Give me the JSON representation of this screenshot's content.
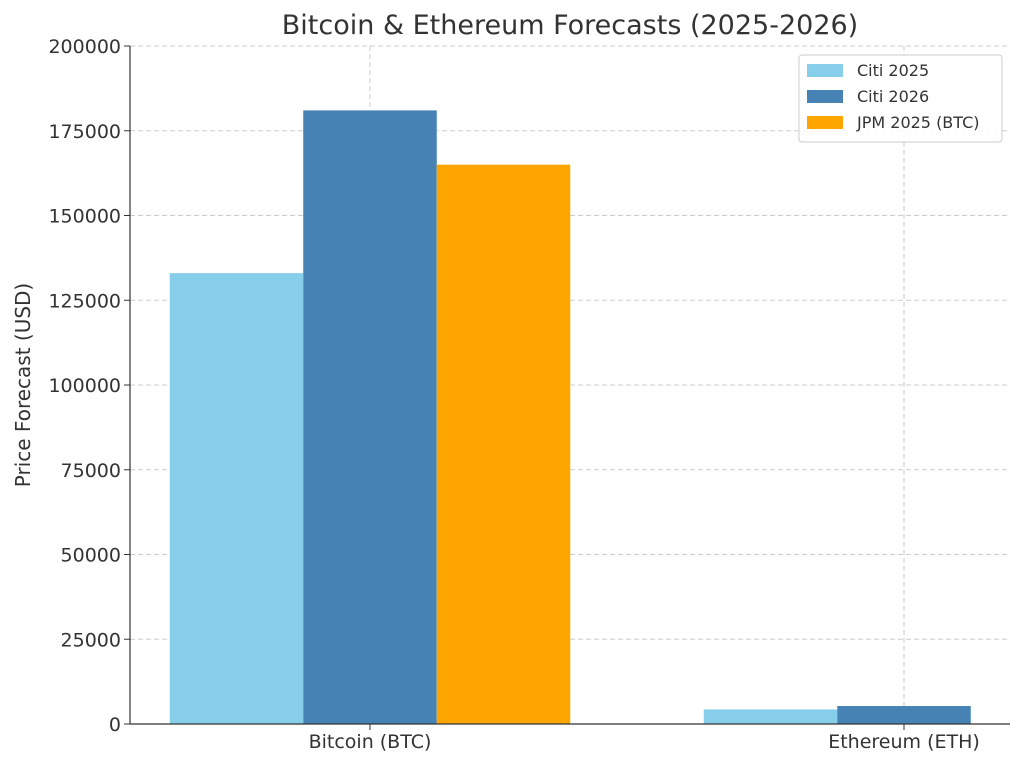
{
  "chart_data": {
    "type": "bar",
    "title": "Bitcoin & Ethereum Forecasts (2025-2026)",
    "xlabel": "",
    "ylabel": "Price Forecast (USD)",
    "ylim": [
      0,
      200000
    ],
    "yticks": [
      "0",
      "25000",
      "50000",
      "75000",
      "100000",
      "125000",
      "150000",
      "175000",
      "200000"
    ],
    "categories": [
      "Bitcoin (BTC)",
      "Ethereum (ETH)"
    ],
    "series": [
      {
        "name": "Citi 2025",
        "color": "#87CEEB",
        "values": [
          133000,
          4300
        ]
      },
      {
        "name": "Citi 2026",
        "color": "#4682B4",
        "values": [
          181000,
          5300
        ]
      },
      {
        "name": "JPM 2025 (BTC)",
        "color": "#FFA500",
        "values": [
          165000,
          null
        ]
      }
    ],
    "grid": true,
    "legend_position": "top-right"
  }
}
